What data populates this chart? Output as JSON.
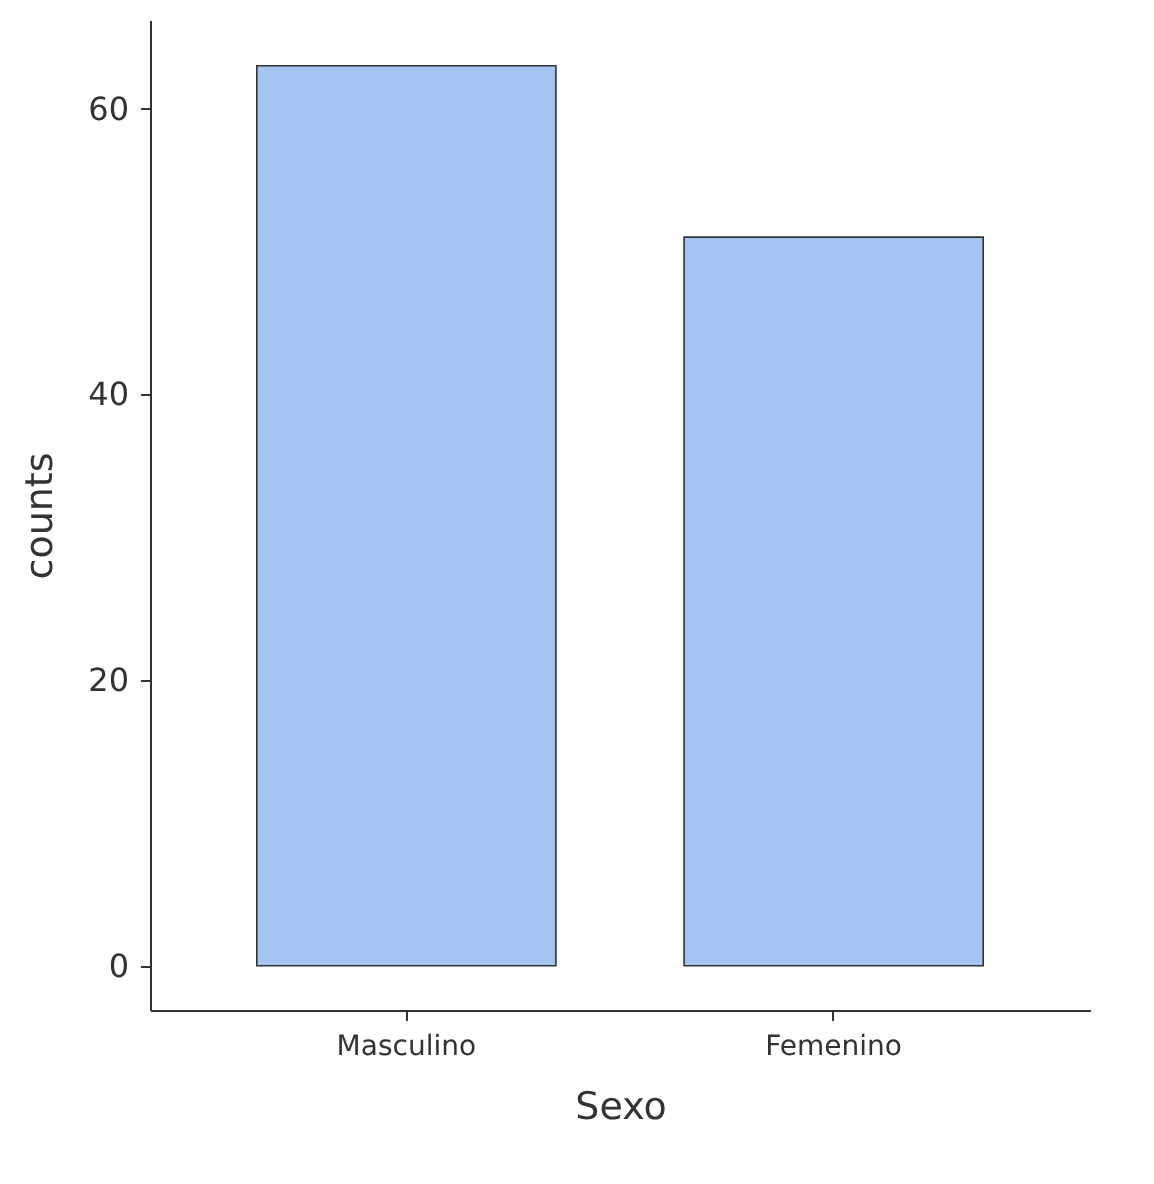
{
  "chart_data": {
    "type": "bar",
    "xlabel": "Sexo",
    "ylabel": "counts",
    "categories": [
      "Masculino",
      "Femenino"
    ],
    "values": [
      63,
      51
    ],
    "color": "#a4c4f2",
    "ylim": [
      -3.1,
      66.2
    ],
    "yticks": [
      0,
      20,
      40,
      60
    ],
    "grid": false
  }
}
